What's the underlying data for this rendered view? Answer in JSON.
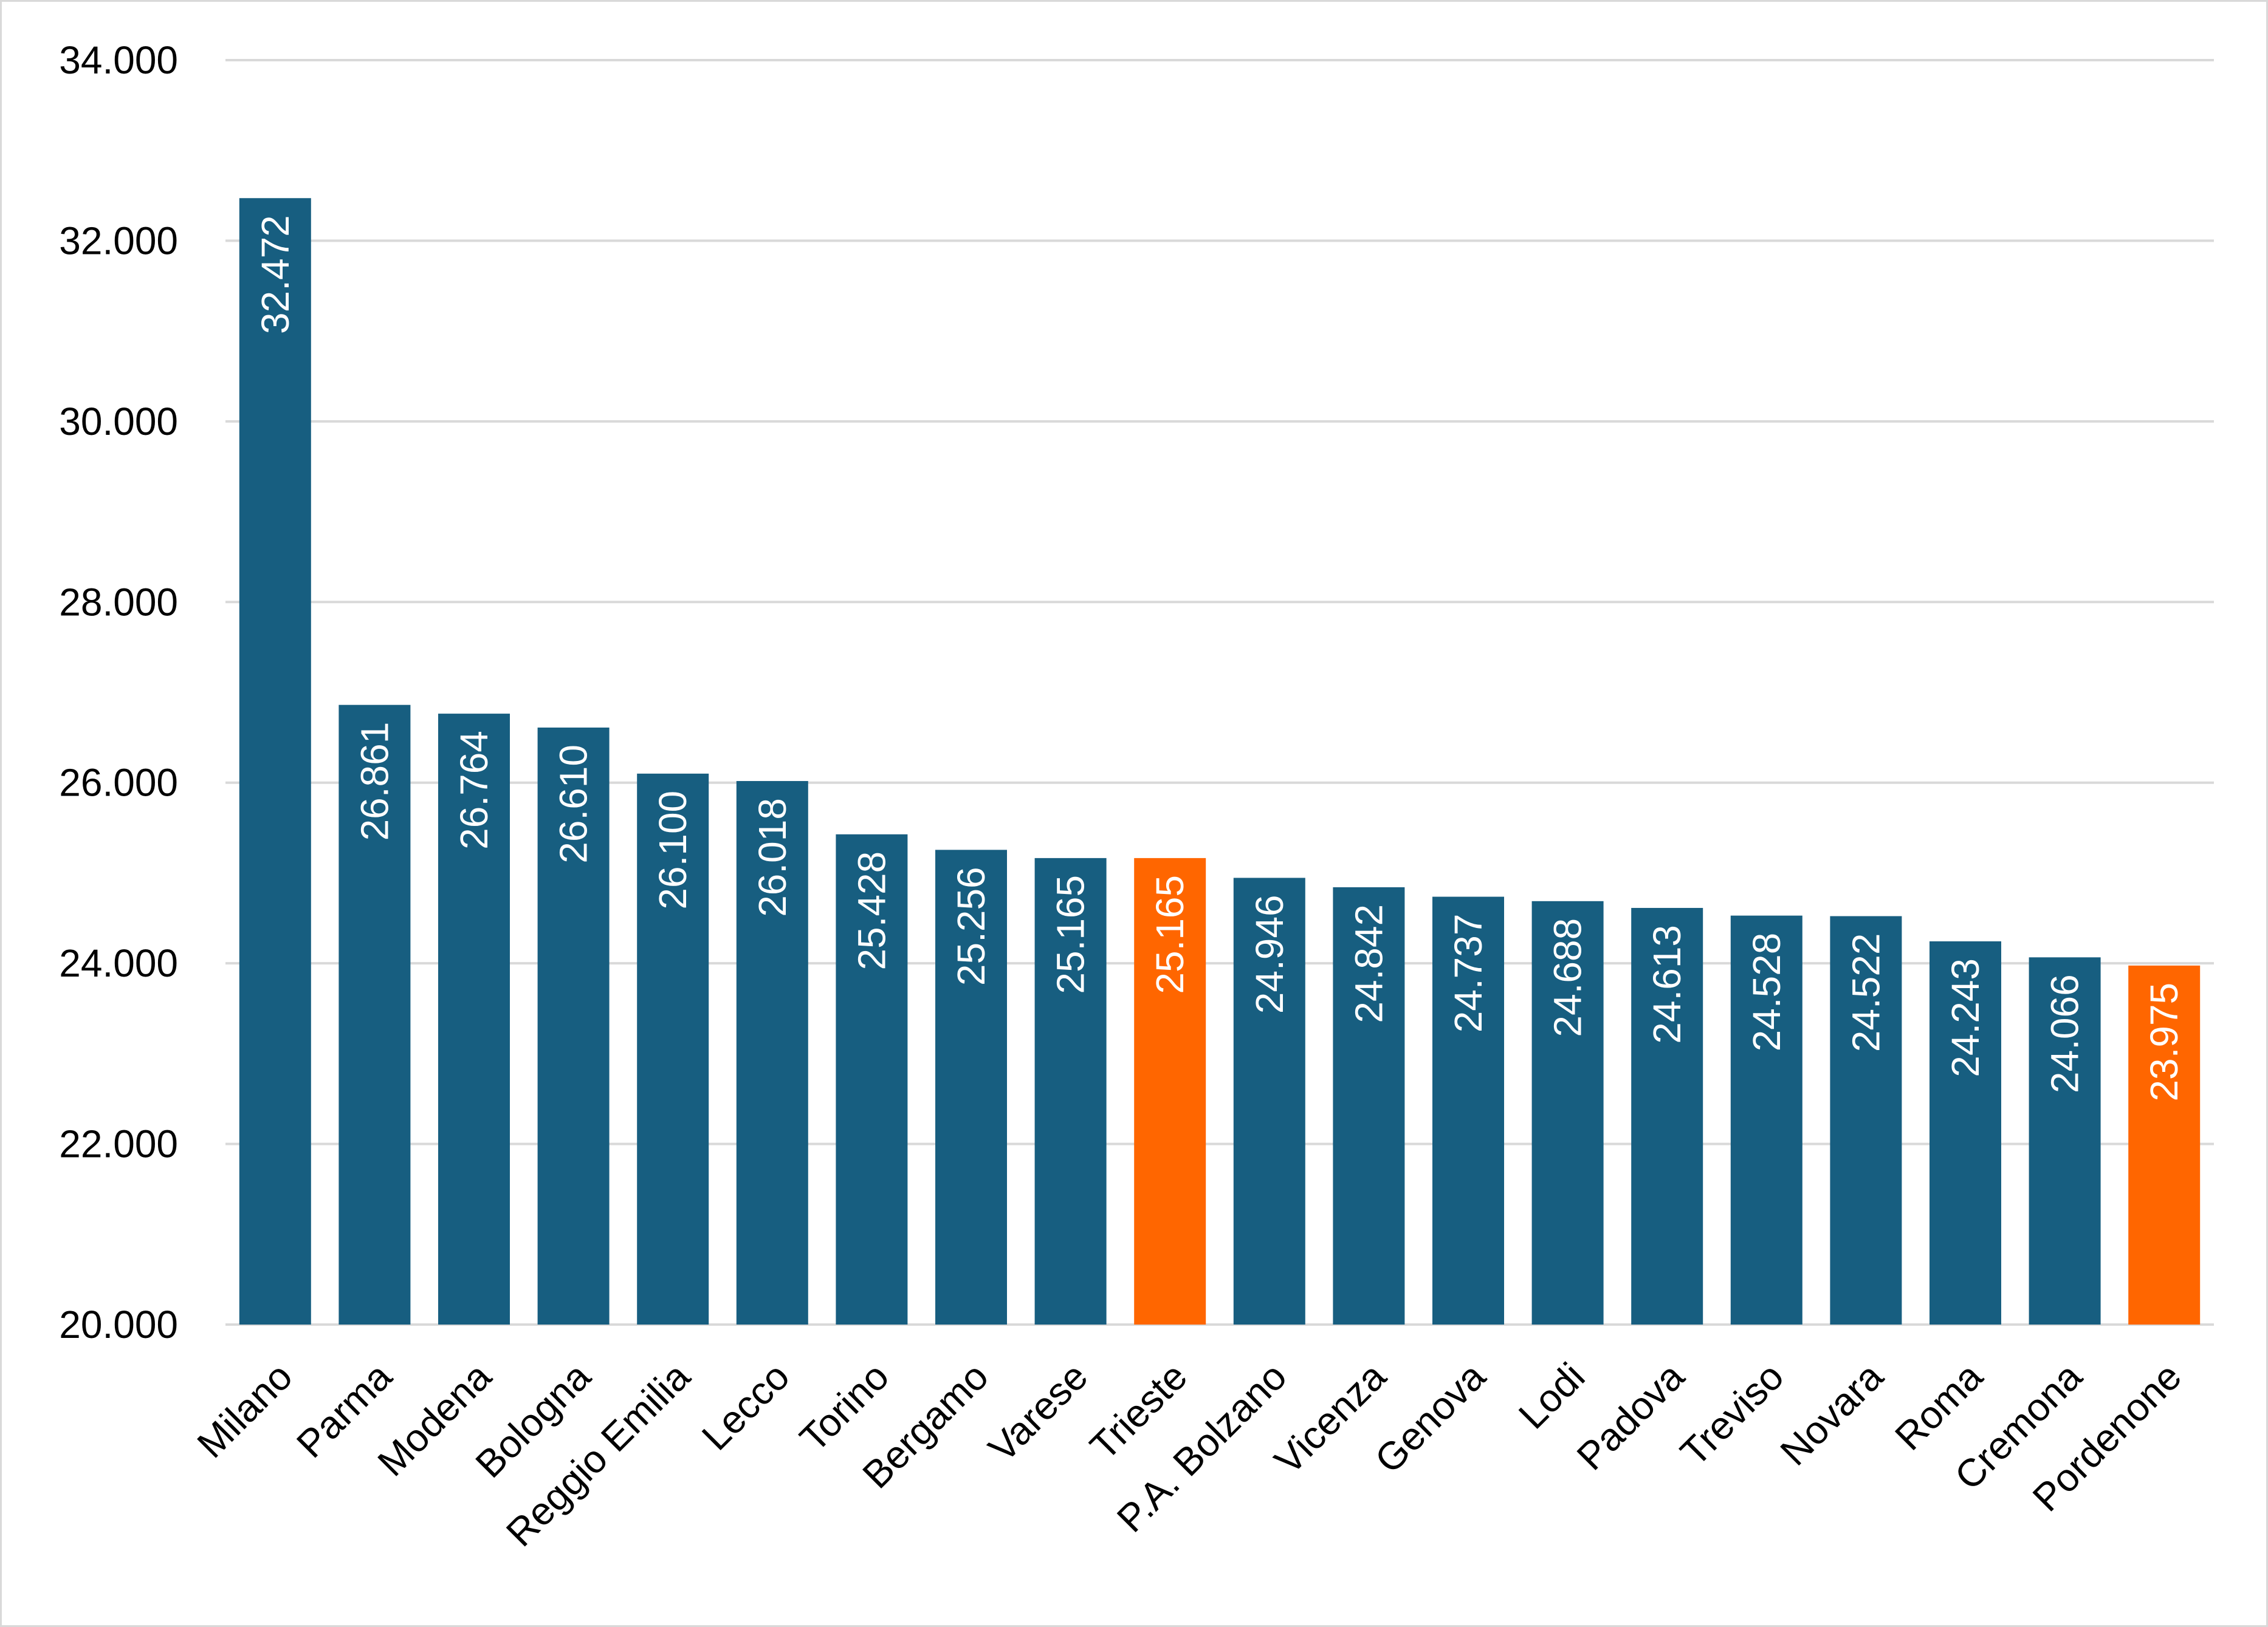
{
  "chart_data": {
    "type": "bar",
    "categories": [
      "Milano",
      "Parma",
      "Modena",
      "Bologna",
      "Reggio Emilia",
      "Lecco",
      "Torino",
      "Bergamo",
      "Varese",
      "Trieste",
      "P.A. Bolzano",
      "Vicenza",
      "Genova",
      "Lodi",
      "Padova",
      "Treviso",
      "Novara",
      "Roma",
      "Cremona",
      "Pordenone"
    ],
    "values": [
      32472,
      26861,
      26764,
      26610,
      26100,
      26018,
      25428,
      25256,
      25165,
      25165,
      24946,
      24842,
      24737,
      24688,
      24613,
      24528,
      24522,
      24243,
      24066,
      23975
    ],
    "value_labels": [
      "32.472",
      "26.861",
      "26.764",
      "26.610",
      "26.100",
      "26.018",
      "25.428",
      "25.256",
      "25.165",
      "25.165",
      "24.946",
      "24.842",
      "24.737",
      "24.688",
      "24.613",
      "24.528",
      "24.522",
      "24.243",
      "24.066",
      "23.975"
    ],
    "highlight": [
      false,
      false,
      false,
      false,
      false,
      false,
      false,
      false,
      false,
      true,
      false,
      false,
      false,
      false,
      false,
      false,
      false,
      false,
      false,
      true
    ],
    "y_ticks": [
      20000,
      22000,
      24000,
      26000,
      28000,
      30000,
      32000,
      34000
    ],
    "y_tick_labels": [
      "20.000",
      "22.000",
      "24.000",
      "26.000",
      "28.000",
      "30.000",
      "32.000",
      "34.000"
    ],
    "ylim": [
      20000,
      34000
    ],
    "grid": true,
    "legend": "none",
    "colors": {
      "bar": "#175e80",
      "highlight": "#ff6600",
      "grid": "#d9d9d9",
      "label": "#ffffff"
    }
  }
}
